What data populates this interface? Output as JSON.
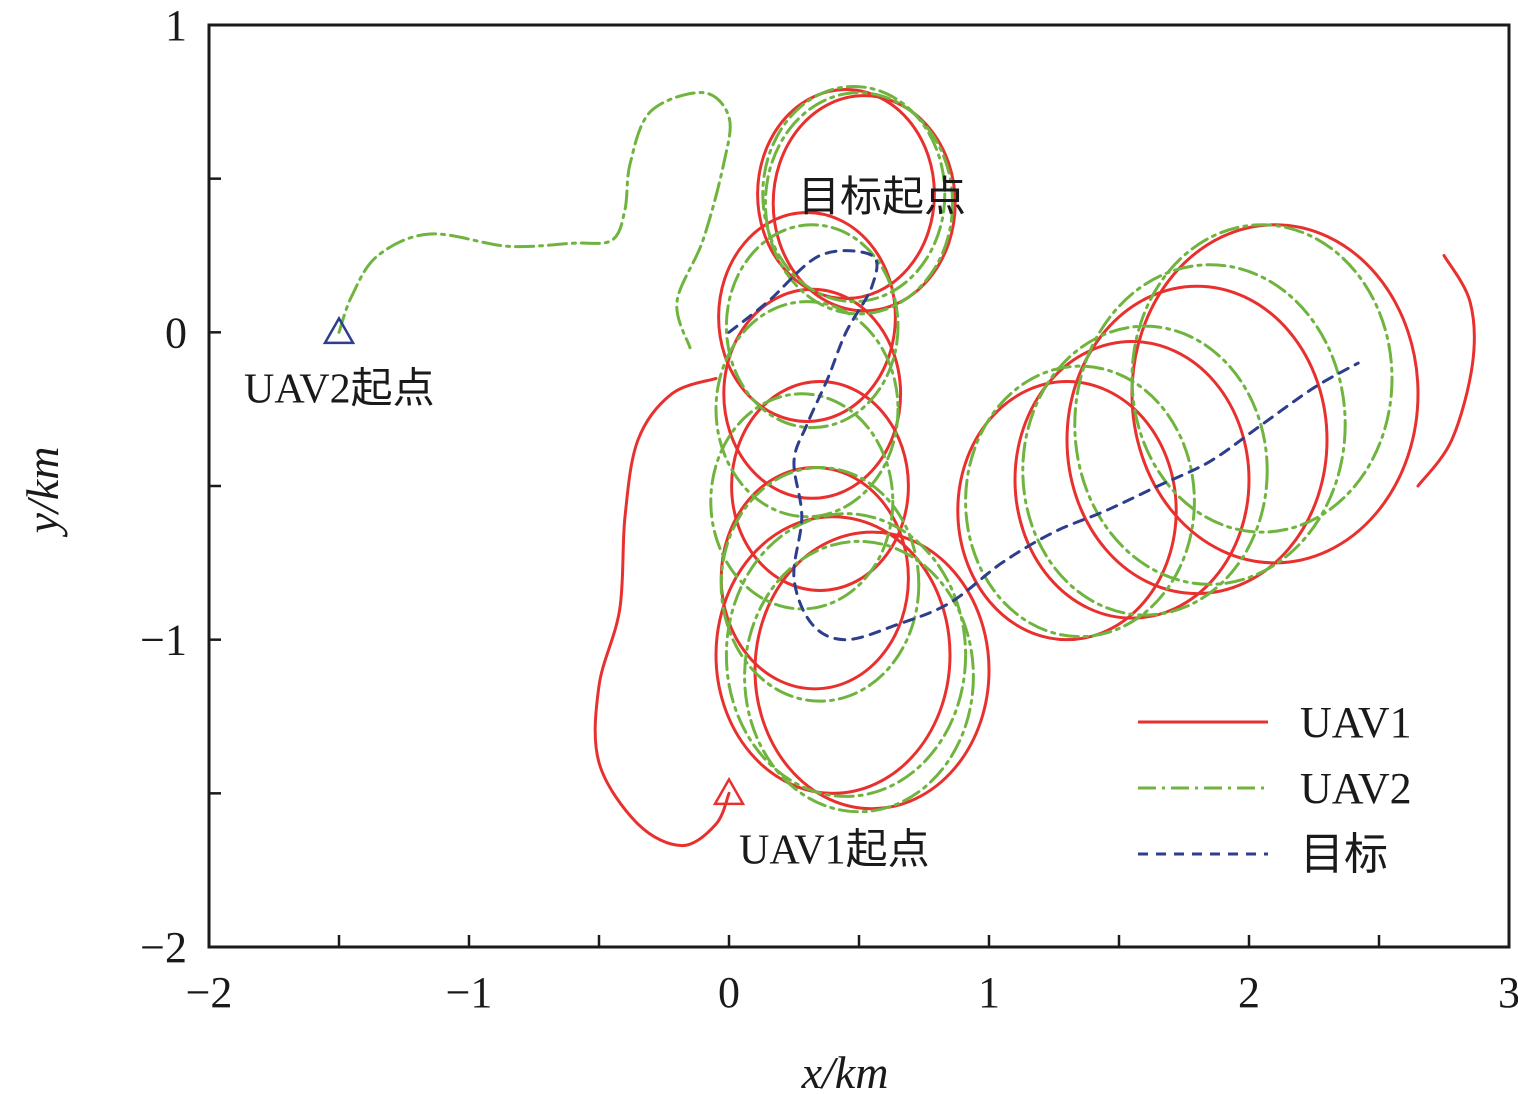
{
  "chart_data": {
    "type": "line",
    "xlabel": "x/km",
    "ylabel": "y/km",
    "xlim": [
      -2,
      3
    ],
    "ylim": [
      -2,
      1
    ],
    "x_ticks": [
      -2,
      -1,
      0,
      1,
      2,
      3
    ],
    "x_tick_labels": [
      "−2",
      "−1",
      "0",
      "1",
      "2",
      "3"
    ],
    "y_ticks": [
      -2,
      -1,
      0,
      1
    ],
    "y_tick_labels": [
      "−2",
      "−1",
      "0",
      "1"
    ],
    "x_minor_ticks": [
      -1.5,
      -0.5,
      0.5,
      1.5,
      2.5
    ],
    "y_minor_ticks": [
      -1.5,
      -0.5,
      0.5
    ],
    "grid": false,
    "legend_position": "lower-right",
    "colors": {
      "uav1": "#e8312e",
      "uav2": "#6fb43f",
      "target": "#2c3e8c"
    },
    "series": [
      {
        "name": "UAV1",
        "style": "solid",
        "start": [
          0,
          -1.5
        ],
        "lead_in": [
          [
            0,
            -1.5
          ],
          [
            -0.05,
            -1.6
          ],
          [
            -0.18,
            -1.67
          ],
          [
            -0.35,
            -1.6
          ],
          [
            -0.5,
            -1.4
          ],
          [
            -0.5,
            -1.15
          ],
          [
            -0.42,
            -0.9
          ],
          [
            -0.4,
            -0.6
          ],
          [
            -0.35,
            -0.35
          ],
          [
            -0.22,
            -0.2
          ],
          [
            -0.05,
            -0.15
          ]
        ],
        "orbits": [
          {
            "cx": 0.45,
            "cy": 0.45,
            "r": 0.34
          },
          {
            "cx": 0.52,
            "cy": 0.42,
            "r": 0.35
          },
          {
            "cx": 0.3,
            "cy": 0.05,
            "r": 0.34
          },
          {
            "cx": 0.32,
            "cy": -0.2,
            "r": 0.34
          },
          {
            "cx": 0.35,
            "cy": -0.5,
            "r": 0.34
          },
          {
            "cx": 0.33,
            "cy": -0.8,
            "r": 0.36
          },
          {
            "cx": 0.4,
            "cy": -1.05,
            "r": 0.45
          },
          {
            "cx": 0.55,
            "cy": -1.1,
            "r": 0.45
          },
          {
            "cx": 1.3,
            "cy": -0.58,
            "r": 0.42
          },
          {
            "cx": 1.55,
            "cy": -0.48,
            "r": 0.45
          },
          {
            "cx": 1.8,
            "cy": -0.35,
            "r": 0.5
          },
          {
            "cx": 2.1,
            "cy": -0.2,
            "r": 0.55
          }
        ],
        "tail": [
          [
            2.65,
            -0.5
          ],
          [
            2.78,
            -0.35
          ],
          [
            2.86,
            -0.1
          ],
          [
            2.85,
            0.1
          ],
          [
            2.75,
            0.25
          ]
        ]
      },
      {
        "name": "UAV2",
        "style": "dash-dot",
        "start": [
          -1.5,
          0
        ],
        "lead_in": [
          [
            -1.5,
            0
          ],
          [
            -1.45,
            0.12
          ],
          [
            -1.35,
            0.25
          ],
          [
            -1.15,
            0.32
          ],
          [
            -0.85,
            0.28
          ],
          [
            -0.6,
            0.29
          ],
          [
            -0.45,
            0.3
          ],
          [
            -0.4,
            0.4
          ],
          [
            -0.38,
            0.55
          ],
          [
            -0.3,
            0.72
          ],
          [
            -0.1,
            0.78
          ],
          [
            0.0,
            0.7
          ],
          [
            -0.02,
            0.55
          ],
          [
            -0.1,
            0.3
          ],
          [
            -0.2,
            0.1
          ],
          [
            -0.15,
            -0.05
          ]
        ],
        "orbits": [
          {
            "cx": 0.48,
            "cy": 0.45,
            "r": 0.35
          },
          {
            "cx": 0.5,
            "cy": 0.42,
            "r": 0.36
          },
          {
            "cx": 0.32,
            "cy": 0.02,
            "r": 0.33
          },
          {
            "cx": 0.3,
            "cy": -0.25,
            "r": 0.35
          },
          {
            "cx": 0.28,
            "cy": -0.55,
            "r": 0.35
          },
          {
            "cx": 0.35,
            "cy": -0.82,
            "r": 0.38
          },
          {
            "cx": 0.45,
            "cy": -1.05,
            "r": 0.46
          },
          {
            "cx": 0.5,
            "cy": -1.12,
            "r": 0.44
          },
          {
            "cx": 1.35,
            "cy": -0.55,
            "r": 0.44
          },
          {
            "cx": 1.6,
            "cy": -0.45,
            "r": 0.47
          },
          {
            "cx": 1.85,
            "cy": -0.3,
            "r": 0.52
          },
          {
            "cx": 2.05,
            "cy": -0.15,
            "r": 0.5
          }
        ]
      },
      {
        "name": "目标",
        "style": "dashed",
        "points": [
          [
            0.0,
            0.0
          ],
          [
            0.15,
            0.1
          ],
          [
            0.35,
            0.25
          ],
          [
            0.55,
            0.25
          ],
          [
            0.55,
            0.15
          ],
          [
            0.45,
            0.0
          ],
          [
            0.38,
            -0.15
          ],
          [
            0.3,
            -0.3
          ],
          [
            0.25,
            -0.42
          ],
          [
            0.28,
            -0.6
          ],
          [
            0.25,
            -0.8
          ],
          [
            0.32,
            -0.95
          ],
          [
            0.45,
            -1.0
          ],
          [
            0.65,
            -0.95
          ],
          [
            0.85,
            -0.88
          ],
          [
            1.05,
            -0.75
          ],
          [
            1.25,
            -0.65
          ],
          [
            1.45,
            -0.58
          ],
          [
            1.65,
            -0.5
          ],
          [
            1.85,
            -0.42
          ],
          [
            2.05,
            -0.3
          ],
          [
            2.25,
            -0.18
          ],
          [
            2.42,
            -0.1
          ]
        ]
      }
    ],
    "annotations": [
      {
        "text": "UAV2起点",
        "x": -1.5,
        "y": 0
      },
      {
        "text": "UAV1起点",
        "x": 0,
        "y": -1.5
      },
      {
        "text": "目标起点",
        "x": 0.4,
        "y": 0.2
      }
    ],
    "legend": [
      {
        "label": "UAV1",
        "series": "UAV1"
      },
      {
        "label": "UAV2",
        "series": "UAV2"
      },
      {
        "label": "目标",
        "series": "目标"
      }
    ]
  }
}
